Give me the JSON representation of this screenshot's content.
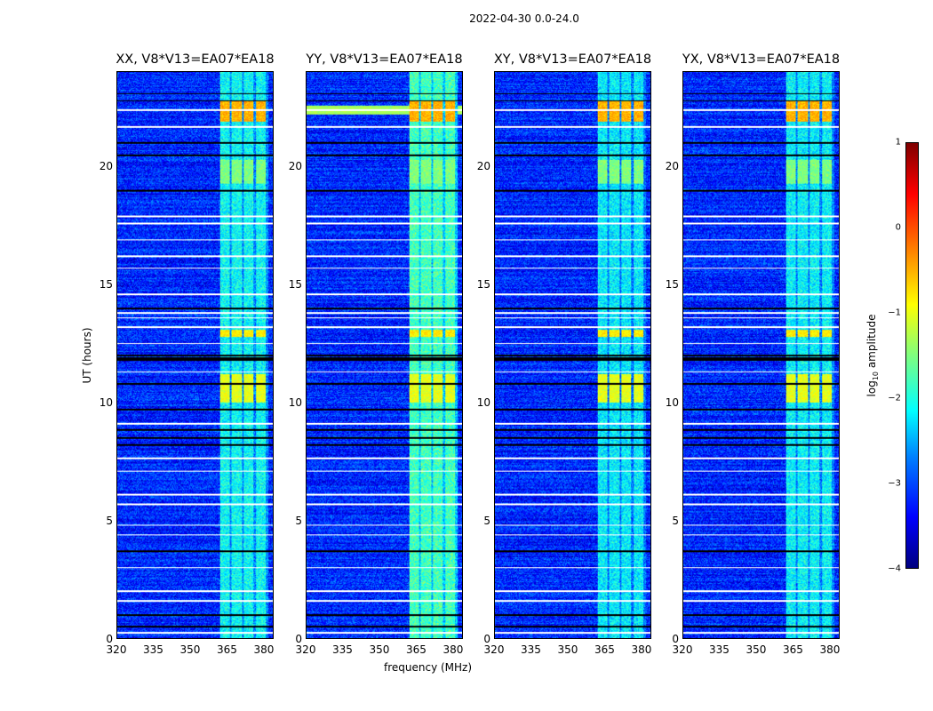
{
  "chart_data": {
    "type": "heatmap",
    "suptitle": "2022-04-30 0.0-24.0",
    "xlabel": "frequency (MHz)",
    "ylabel": "UT (hours)",
    "xlim": [
      320,
      384
    ],
    "ylim": [
      0,
      24
    ],
    "xticks": [
      "320",
      "335",
      "350",
      "365",
      "380"
    ],
    "xtick_values": [
      320,
      335,
      350,
      365,
      380
    ],
    "yticks": [
      "0",
      "5",
      "10",
      "15",
      "20"
    ],
    "ytick_values": [
      0,
      5,
      10,
      15,
      20
    ],
    "colorbar": {
      "label_prefix": "log",
      "label_sub": "10",
      "label_suffix": " amplitude",
      "range": [
        -4,
        1
      ],
      "ticks": [
        "1",
        "0",
        "−1",
        "−2",
        "−3",
        "−4"
      ],
      "tick_values": [
        1,
        0,
        -1,
        -2,
        -3,
        -4
      ],
      "colormap": "jet"
    },
    "panels": [
      {
        "title": "XX, V8*V13=EA07*EA18",
        "band_boost": 0
      },
      {
        "title": "YY, V8*V13=EA07*EA18",
        "band_boost": 0.3,
        "extra_band": {
          "t": [
            22.2,
            22.6
          ],
          "level": -1.3
        }
      },
      {
        "title": "XY, V8*V13=EA07*EA18",
        "band_boost": -0.1
      },
      {
        "title": "YX, V8*V13=EA07*EA18",
        "band_boost": -0.05
      }
    ],
    "background_level": -3.2,
    "rfi_band_mhz": [
      362,
      382
    ],
    "rfi_band_level": -2.3,
    "bright_patches": [
      {
        "t": [
          10.0,
          11.2
        ],
        "level": -1.0
      },
      {
        "t": [
          12.8,
          13.1
        ],
        "level": -0.8
      },
      {
        "t": [
          19.3,
          20.3
        ],
        "level": -1.5
      },
      {
        "t": [
          21.9,
          22.8
        ],
        "level": -0.5
      }
    ],
    "flagged_white_hours": [
      22.4,
      21.7,
      17.9,
      17.6,
      16.9,
      16.2,
      15.7,
      14.6,
      13.8,
      13.6,
      13.2,
      12.5,
      11.3,
      9.1,
      7.65,
      7.1,
      6.1,
      5.7,
      4.8,
      4.4,
      3.0,
      2.0,
      1.6,
      0.25
    ],
    "flagged_black_hours": [
      23.1,
      22.8,
      21.0,
      20.5,
      19.0,
      14.0,
      12.0,
      11.9,
      11.8,
      10.8,
      9.7,
      8.85,
      8.5,
      8.2,
      3.7,
      1.0,
      0.5
    ]
  }
}
